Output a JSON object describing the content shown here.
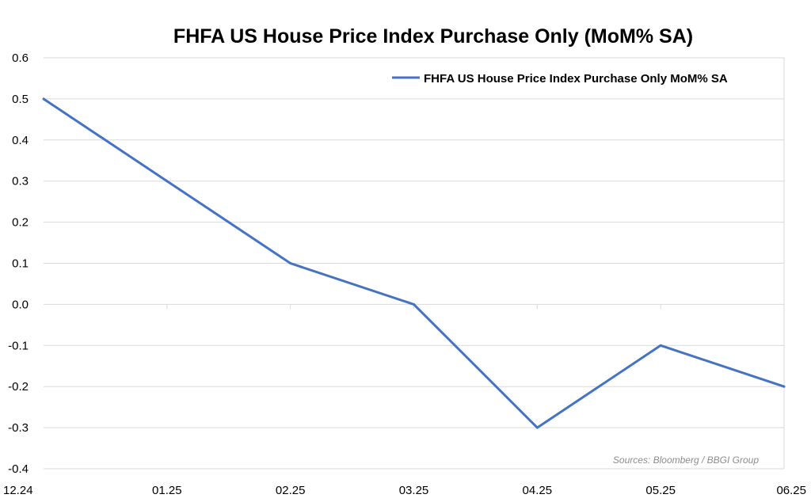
{
  "chart_data": {
    "type": "line",
    "title": "FHFA US House Price Index Purchase Only (MoM% SA)",
    "categories": [
      "12.24",
      "01.25",
      "02.25",
      "03.25",
      "04.25",
      "05.25",
      "06.25"
    ],
    "series": [
      {
        "name": "FHFA US House Price Index Purchase Only MoM% SA",
        "values": [
          0.5,
          0.3,
          0.1,
          0.0,
          -0.3,
          -0.1,
          -0.2
        ],
        "color": "#4472c4"
      }
    ],
    "ylim": [
      -0.4,
      0.6
    ],
    "yticks": [
      "0.6",
      "0.5",
      "0.4",
      "0.3",
      "0.2",
      "0.1",
      "0.0",
      "-0.1",
      "-0.2",
      "-0.3",
      "-0.4"
    ],
    "grid": true,
    "legend_position": "top-right",
    "source": "Sources: Bloomberg / BBGI Group"
  }
}
